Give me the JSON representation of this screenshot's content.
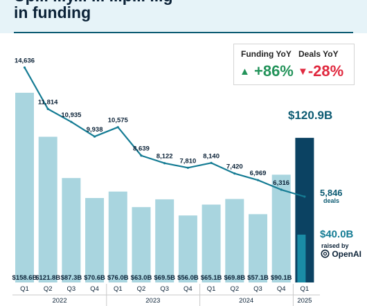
{
  "title": {
    "line1": "Up... ...y... ... ...p... ...g",
    "line2": "in funding"
  },
  "yoy": {
    "funding_label": "Funding YoY",
    "funding_value": "+86%",
    "deals_label": "Deals YoY",
    "deals_value": "-28%",
    "funding_color": "#23935a",
    "deals_color": "#e0293f",
    "up_icon": "triangle-up-icon",
    "down_icon": "triangle-down-icon"
  },
  "highlight": {
    "total_label": "$120.9B",
    "deals_value": "5,846",
    "deals_caption": "deals",
    "openai_value": "$40.0B",
    "openai_caption": "raised by",
    "openai_brand": "OpenAI",
    "openai_icon": "openai-logo-icon"
  },
  "colors": {
    "bar": "#a9d5df",
    "highlight_bar": "#0b4262",
    "openai_bar": "#1a8ca6",
    "line": "#157c94",
    "text_dark": "#0b2237",
    "highlight_text": "#0b5a72"
  },
  "chart_data": {
    "type": "bar",
    "x_quarters": [
      "Q1",
      "Q2",
      "Q3",
      "Q4",
      "Q1",
      "Q2",
      "Q3",
      "Q4",
      "Q1",
      "Q2",
      "Q3",
      "Q4",
      "Q1"
    ],
    "x_years": [
      {
        "label": "2022",
        "count": 4
      },
      {
        "label": "2023",
        "count": 4
      },
      {
        "label": "2024",
        "count": 4
      },
      {
        "label": "2025",
        "count": 1
      }
    ],
    "funding": {
      "values": [
        158.6,
        121.8,
        87.3,
        70.6,
        76.0,
        63.0,
        69.5,
        56.0,
        65.1,
        69.8,
        57.1,
        90.1,
        120.9
      ],
      "labels": [
        "$158.6B",
        "$121.8B",
        "$87.3B",
        "$70.6B",
        "$76.0B",
        "$63.0B",
        "$69.5B",
        "$56.0B",
        "$65.1B",
        "$69.8B",
        "$57.1B",
        "$90.1B",
        "$120.9B"
      ],
      "openai_portion_last": 40.0
    },
    "deals": {
      "values": [
        14636,
        11814,
        10935,
        9938,
        10575,
        8639,
        8122,
        7810,
        8140,
        7420,
        6969,
        6316,
        5846
      ],
      "labels": [
        "14,636",
        "11,814",
        "10,935",
        "9,938",
        "10,575",
        "8,639",
        "8,122",
        "7,810",
        "8,140",
        "7,420",
        "6,969",
        "6,316",
        "5,846"
      ]
    },
    "funding_ylim": [
      0,
      180
    ],
    "deals_ylim": [
      0,
      16500
    ]
  }
}
